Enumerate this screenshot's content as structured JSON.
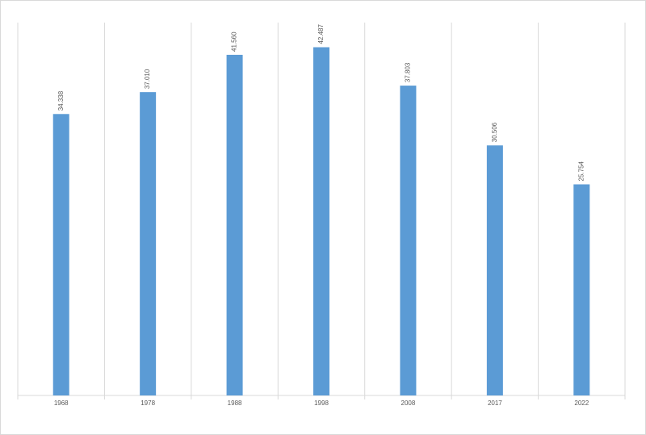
{
  "chart_data": {
    "type": "bar",
    "categories": [
      "1968",
      "1978",
      "1988",
      "1998",
      "2008",
      "2017",
      "2022"
    ],
    "values": [
      34338,
      37010,
      41560,
      42487,
      37803,
      30506,
      25754
    ],
    "value_labels": [
      "34.338",
      "37.010",
      "41.560",
      "42.487",
      "37.803",
      "30.506",
      "25.754"
    ],
    "color": "#5b9bd5",
    "ylim": [
      0,
      45000
    ]
  }
}
